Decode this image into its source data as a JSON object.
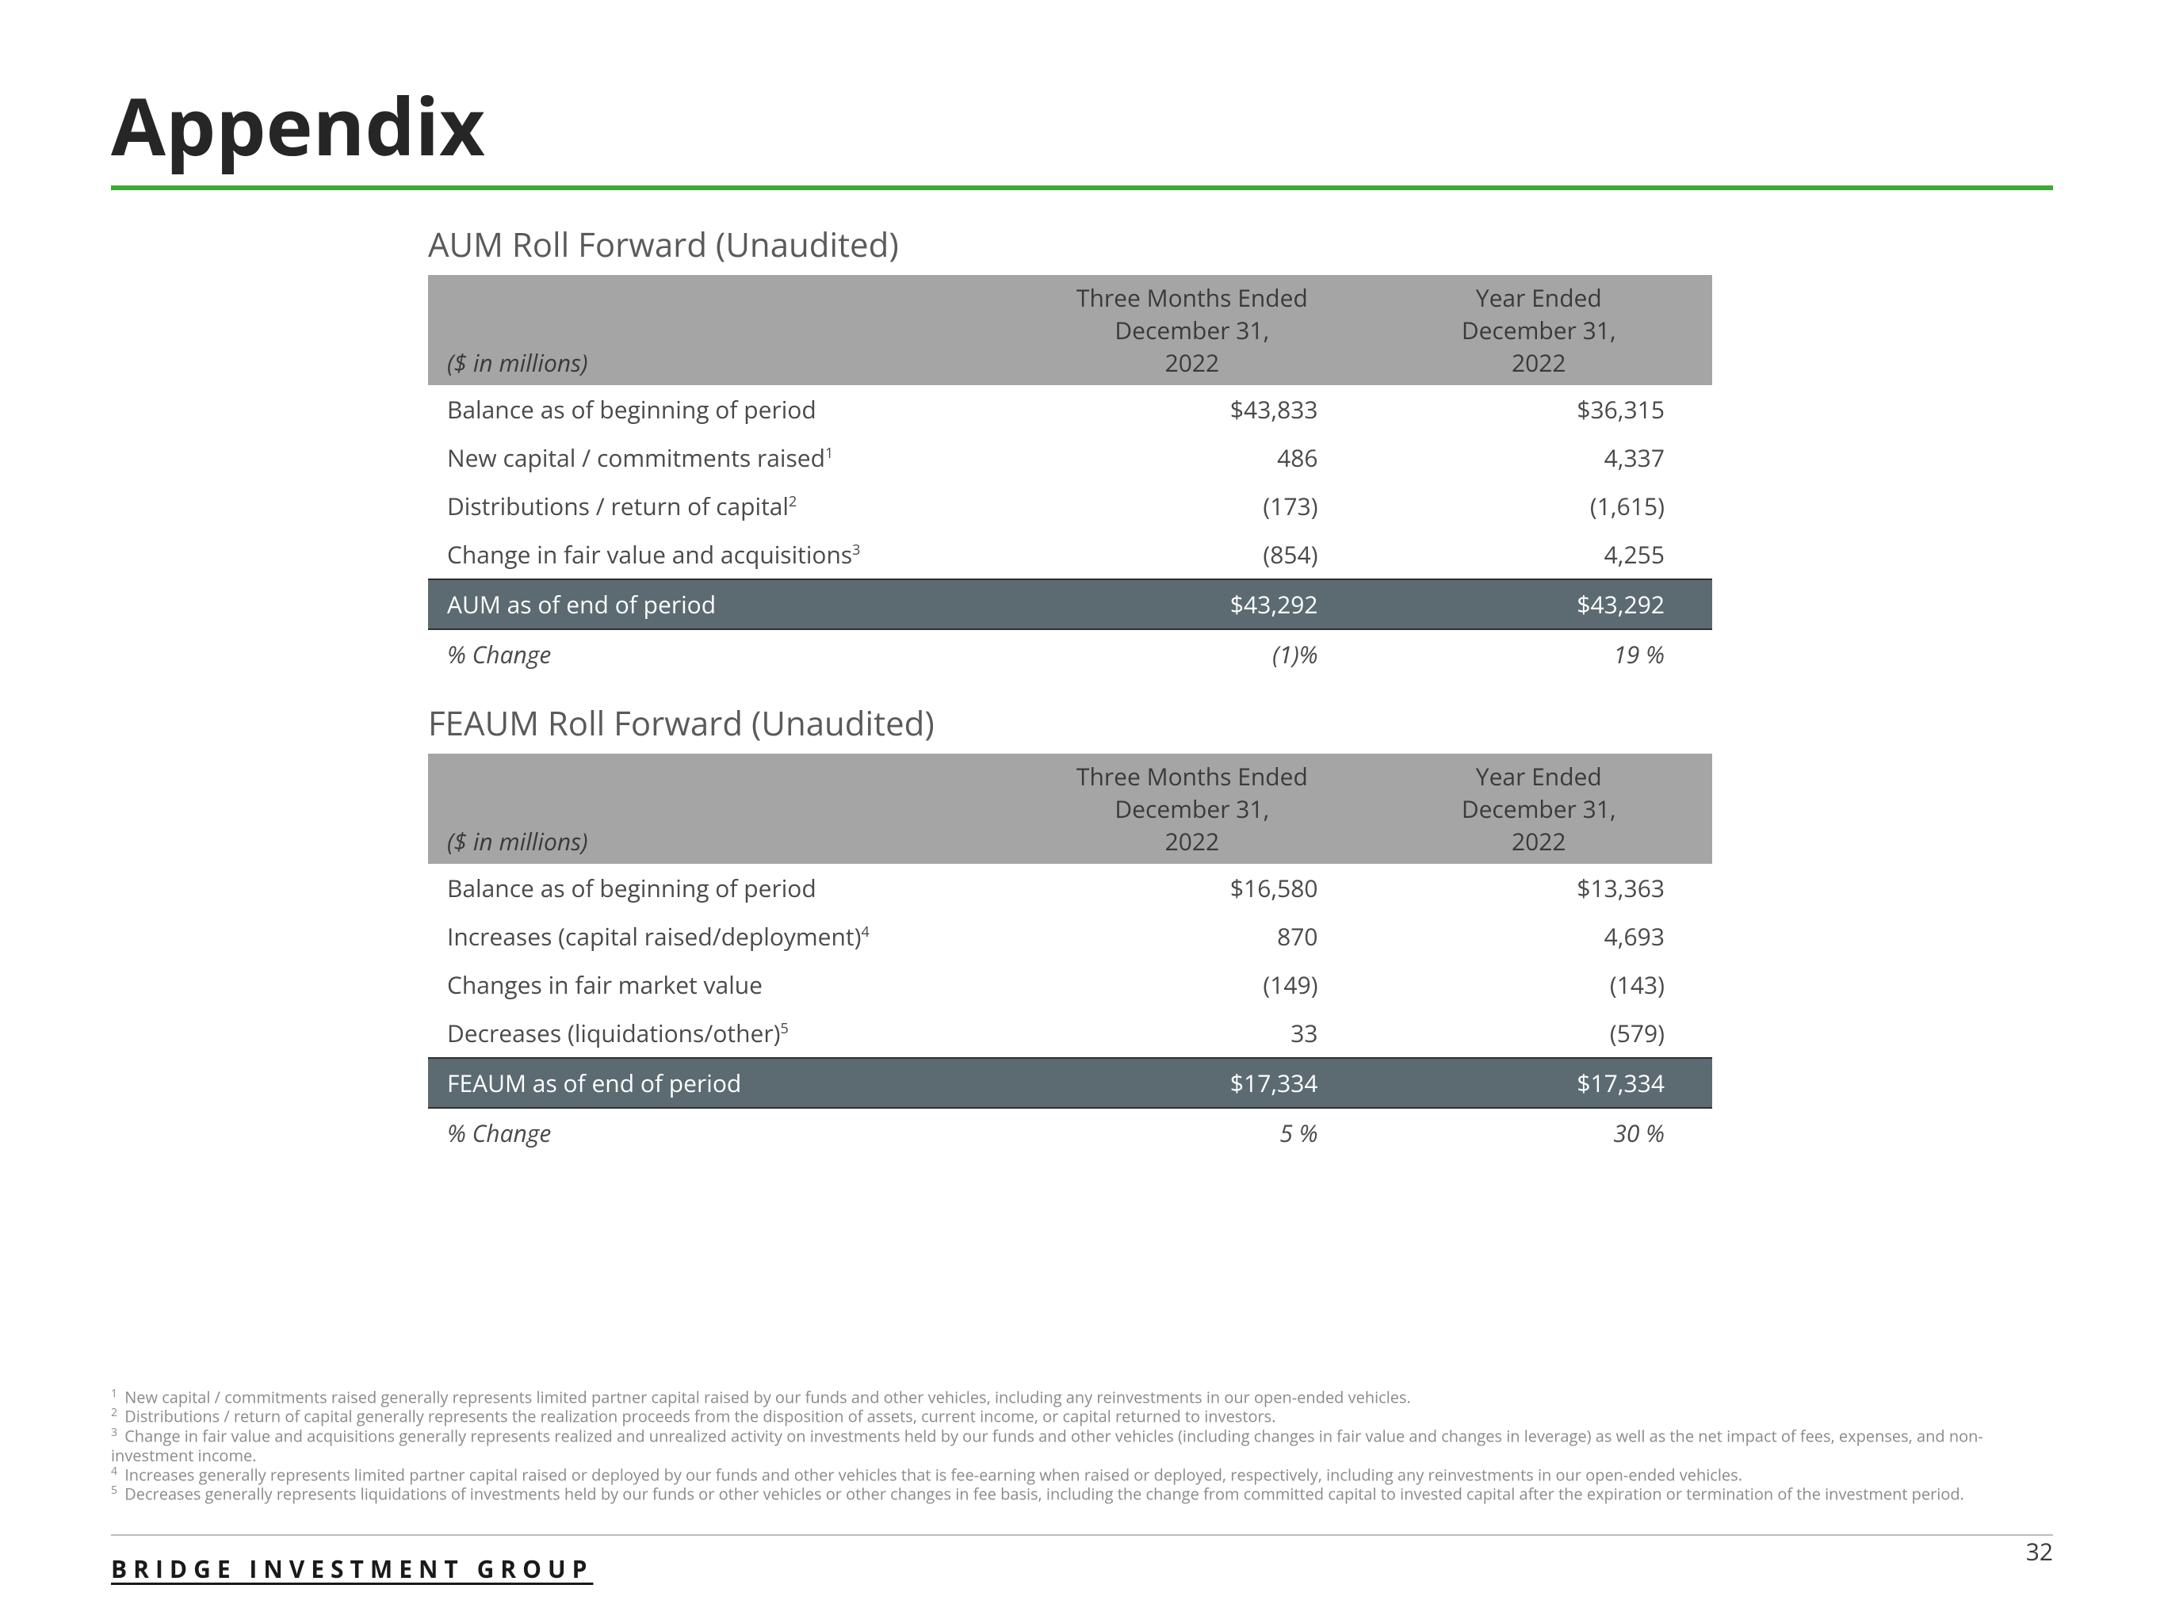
{
  "page": {
    "title": "Appendix",
    "company": "BRIDGE INVESTMENT GROUP",
    "pagenum": "32"
  },
  "colors": {
    "accent": "#3eaa36",
    "header_bg": "#a5a5a5",
    "total_bg": "#5c6b72",
    "text": "#3a3a3a",
    "muted": "#8a8a8a"
  },
  "table1": {
    "title": "AUM Roll Forward (Unaudited)",
    "unit_label": "($ in millions)",
    "col1": "Three Months Ended\nDecember 31,\n2022",
    "col2": "Year Ended\nDecember 31,\n2022",
    "rows": [
      {
        "label": "Balance as of beginning of period",
        "sup": "",
        "v1": "$43,833",
        "v2": "$36,315"
      },
      {
        "label": "New capital / commitments raised",
        "sup": "1",
        "v1": "486",
        "v2": "4,337"
      },
      {
        "label": "Distributions / return of capital",
        "sup": "2",
        "v1": "(173)",
        "v2": "(1,615)"
      },
      {
        "label": "Change in fair value and acquisitions",
        "sup": "3",
        "v1": "(854)",
        "v2": "4,255"
      }
    ],
    "total": {
      "label": "AUM as of end of period",
      "v1": "$43,292",
      "v2": "$43,292"
    },
    "change": {
      "label": "% Change",
      "v1": "(1)%",
      "v2": "19 %"
    }
  },
  "table2": {
    "title": "FEAUM Roll Forward (Unaudited)",
    "unit_label": "($ in millions)",
    "col1": "Three Months Ended\nDecember 31,\n2022",
    "col2": "Year Ended\nDecember 31,\n2022",
    "rows": [
      {
        "label": "Balance as of beginning of period",
        "sup": "",
        "v1": "$16,580",
        "v2": "$13,363"
      },
      {
        "label": "Increases (capital raised/deployment)",
        "sup": "4",
        "v1": "870",
        "v2": "4,693"
      },
      {
        "label": "Changes in fair market value",
        "sup": "",
        "v1": "(149)",
        "v2": "(143)"
      },
      {
        "label": "Decreases (liquidations/other)",
        "sup": "5",
        "v1": "33",
        "v2": "(579)"
      }
    ],
    "total": {
      "label": "FEAUM as of end of period",
      "v1": "$17,334",
      "v2": "$17,334"
    },
    "change": {
      "label": "% Change",
      "v1": "5 %",
      "v2": "30 %"
    }
  },
  "footnotes": [
    {
      "n": "1",
      "text": "New capital / commitments raised generally represents limited partner capital raised by our funds and other vehicles, including any reinvestments in our open-ended vehicles."
    },
    {
      "n": "2",
      "text": "Distributions / return of capital generally represents the realization proceeds from the disposition of assets, current income, or capital returned to investors."
    },
    {
      "n": "3",
      "text": "Change in fair value and acquisitions generally represents realized and unrealized activity on investments held by our funds and other vehicles (including changes in fair value and changes in leverage) as well as the net impact of fees, expenses, and non-investment income."
    },
    {
      "n": "4",
      "text": "Increases generally represents limited partner capital raised or deployed by our funds and other vehicles that is fee-earning when raised or deployed, respectively, including any reinvestments in our open-ended vehicles."
    },
    {
      "n": "5",
      "text": "Decreases generally represents liquidations of investments held by our funds or other vehicles or other changes in fee basis, including the change from committed capital to invested capital after the expiration or termination of the investment period."
    }
  ]
}
